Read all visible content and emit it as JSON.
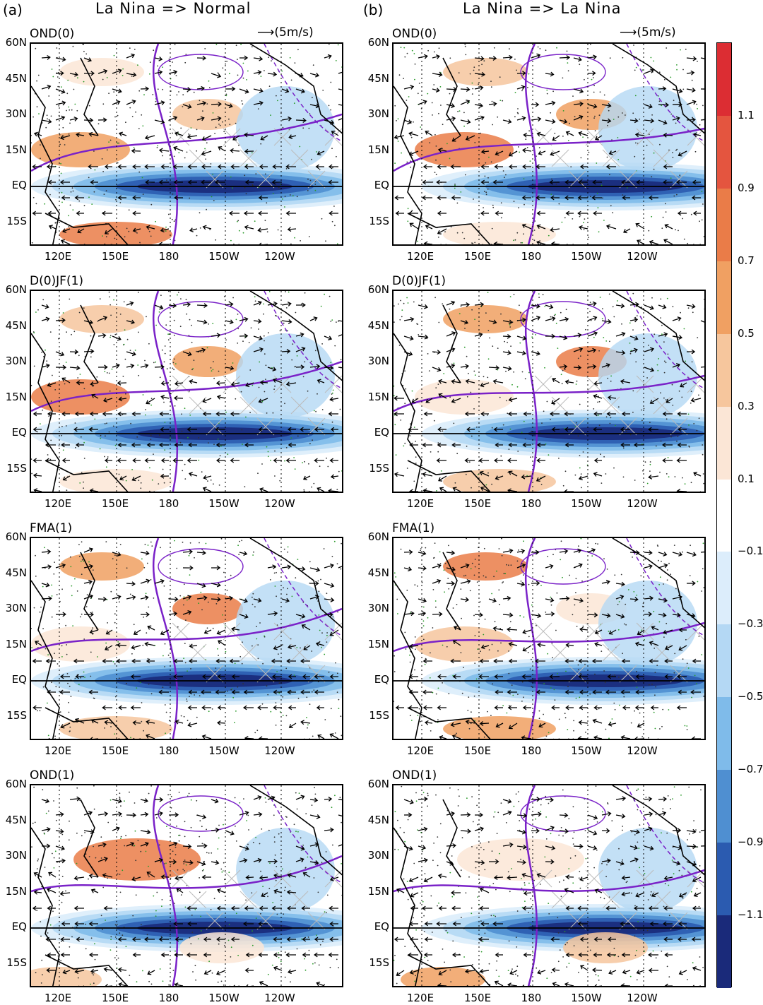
{
  "columns": [
    {
      "label": "(a)",
      "title": "La Nina => Normal"
    },
    {
      "label": "(b)",
      "title": "La Nina => La Nina"
    }
  ],
  "reference_vector": "(5m/s)",
  "season_titles": [
    "OND(0)",
    "D(0)JF(1)",
    "FMA(1)",
    "OND(1)"
  ],
  "lat_labels": [
    "60N",
    "45N",
    "30N",
    "15N",
    "EQ",
    "15S"
  ],
  "lon_labels": [
    "120E",
    "150E",
    "180",
    "150W",
    "120W"
  ],
  "colorbar": {
    "ticks": [
      "1.1",
      "0.9",
      "0.7",
      "0.5",
      "0.3",
      "0.1",
      "-0.1",
      "-0.3",
      "-0.5",
      "-0.7",
      "-0.9",
      "-1.1"
    ],
    "colors": [
      "#dc2d33",
      "#e4553f",
      "#ea7c48",
      "#f0a062",
      "#f6c69d",
      "#fbe6d6",
      "#ffffff",
      "#dcedfb",
      "#b4d8f4",
      "#7fbbea",
      "#4f8fd1",
      "#2b5bb0",
      "#1a2a7a"
    ]
  }
}
